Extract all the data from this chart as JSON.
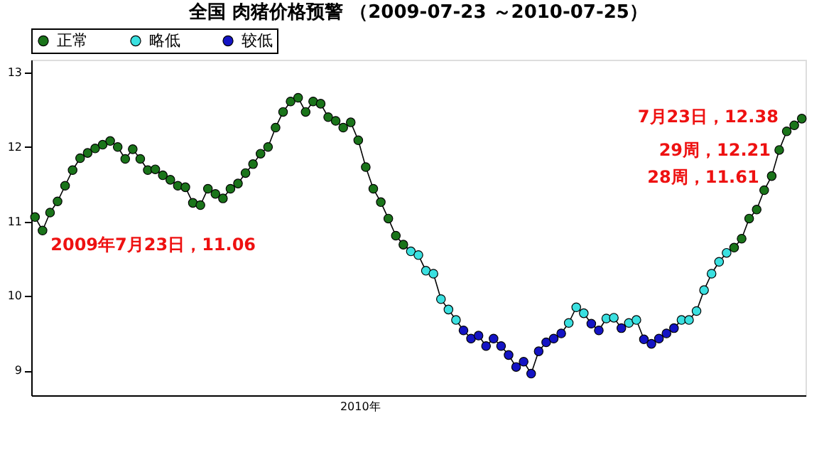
{
  "chart_data": {
    "type": "scatter",
    "title": "全国 肉猪价格预警 （2009-07-23 ～2010-07-25）",
    "categories": [
      null,
      null,
      null,
      null,
      null,
      null,
      null,
      null,
      null,
      null,
      null,
      null,
      null,
      null,
      null,
      null,
      null,
      null,
      null,
      null,
      null,
      null,
      null,
      null,
      null,
      null,
      null,
      null,
      null,
      null,
      null,
      null,
      null,
      null,
      null,
      null,
      null,
      null,
      null,
      null,
      null,
      null,
      null,
      null,
      null,
      null,
      null,
      null,
      null,
      null,
      null,
      null,
      null,
      null,
      null,
      null,
      null,
      null,
      null,
      null,
      null,
      null,
      null,
      null,
      null,
      null,
      null,
      null,
      null,
      null,
      null,
      null,
      null,
      null,
      null,
      null,
      null,
      null,
      null,
      null,
      null,
      null,
      null,
      null,
      null,
      null,
      null,
      null,
      null,
      null,
      null,
      null,
      null,
      null,
      null,
      null,
      null,
      null,
      null,
      null,
      null,
      null,
      null
    ],
    "ylim": [
      8.67,
      13.17
    ],
    "yticks": [
      9,
      10,
      11,
      12,
      13
    ],
    "grid": false,
    "legend": "top left",
    "marker": "circle",
    "series": [
      {
        "type": "line",
        "color": "#000000",
        "marker": "none",
        "values": [
          11.06,
          10.88,
          11.12,
          11.27,
          11.48,
          11.69,
          11.85,
          11.92,
          11.98,
          12.03,
          12.08,
          12.0,
          11.84,
          11.97,
          11.84,
          11.69,
          11.7,
          11.62,
          11.56,
          11.48,
          11.46,
          11.25,
          11.22,
          11.44,
          11.37,
          11.31,
          11.44,
          11.51,
          11.65,
          11.77,
          11.91,
          12.0,
          12.26,
          12.47,
          12.61,
          12.66,
          12.47,
          12.61,
          12.58,
          12.4,
          12.35,
          12.26,
          12.33,
          12.09,
          11.73,
          11.44,
          11.26,
          11.04,
          10.81,
          10.69,
          10.6,
          10.55,
          10.34,
          10.3,
          9.96,
          9.82,
          9.68,
          9.54,
          9.43,
          9.47,
          9.33,
          9.43,
          9.33,
          9.21,
          9.05,
          9.12,
          8.96,
          9.26,
          9.38,
          9.43,
          9.5,
          9.64,
          9.85,
          9.77,
          9.63,
          9.54,
          9.7,
          9.71,
          9.57,
          9.64,
          9.68,
          9.42,
          9.36,
          9.43,
          9.5,
          9.57,
          9.68,
          9.68,
          9.8,
          10.08,
          10.3,
          10.46,
          10.58,
          10.65,
          10.77,
          11.04,
          11.16,
          11.42,
          11.61,
          11.96,
          12.21,
          12.29,
          12.38
        ]
      },
      {
        "name": "正常",
        "color": "#1a741a",
        "values": [
          11.06,
          10.88,
          11.12,
          11.27,
          11.48,
          11.69,
          11.85,
          11.92,
          11.98,
          12.03,
          12.08,
          12.0,
          11.84,
          11.97,
          11.84,
          11.69,
          11.7,
          11.62,
          11.56,
          11.48,
          11.46,
          11.25,
          11.22,
          11.44,
          11.37,
          11.31,
          11.44,
          11.51,
          11.65,
          11.77,
          11.91,
          12.0,
          12.26,
          12.47,
          12.61,
          12.66,
          12.47,
          12.61,
          12.58,
          12.4,
          12.35,
          12.26,
          12.33,
          12.09,
          11.73,
          11.44,
          11.26,
          11.04,
          10.81,
          10.69,
          null,
          null,
          null,
          null,
          null,
          null,
          null,
          null,
          null,
          null,
          null,
          null,
          null,
          null,
          null,
          null,
          null,
          null,
          null,
          null,
          null,
          null,
          null,
          null,
          null,
          null,
          null,
          null,
          null,
          null,
          null,
          null,
          null,
          null,
          null,
          null,
          null,
          null,
          null,
          null,
          null,
          null,
          null,
          10.65,
          10.77,
          11.04,
          11.16,
          11.42,
          11.61,
          11.96,
          12.21,
          12.29,
          12.38
        ]
      },
      {
        "name": "略低",
        "color": "#3ae0e0",
        "values": [
          null,
          null,
          null,
          null,
          null,
          null,
          null,
          null,
          null,
          null,
          null,
          null,
          null,
          null,
          null,
          null,
          null,
          null,
          null,
          null,
          null,
          null,
          null,
          null,
          null,
          null,
          null,
          null,
          null,
          null,
          null,
          null,
          null,
          null,
          null,
          null,
          null,
          null,
          null,
          null,
          null,
          null,
          null,
          null,
          null,
          null,
          null,
          null,
          null,
          null,
          10.6,
          10.55,
          10.34,
          10.3,
          9.96,
          9.82,
          9.68,
          null,
          null,
          null,
          null,
          null,
          null,
          null,
          null,
          null,
          null,
          null,
          null,
          null,
          null,
          9.64,
          9.85,
          9.77,
          null,
          null,
          9.7,
          9.71,
          null,
          9.64,
          9.68,
          null,
          null,
          null,
          null,
          null,
          9.68,
          9.68,
          9.8,
          10.08,
          10.3,
          10.46,
          10.58,
          null,
          null,
          null,
          null,
          null,
          null,
          null,
          null,
          null,
          null
        ]
      },
      {
        "name": "较低",
        "color": "#1414c4",
        "values": [
          null,
          null,
          null,
          null,
          null,
          null,
          null,
          null,
          null,
          null,
          null,
          null,
          null,
          null,
          null,
          null,
          null,
          null,
          null,
          null,
          null,
          null,
          null,
          null,
          null,
          null,
          null,
          null,
          null,
          null,
          null,
          null,
          null,
          null,
          null,
          null,
          null,
          null,
          null,
          null,
          null,
          null,
          null,
          null,
          null,
          null,
          null,
          null,
          null,
          null,
          null,
          null,
          null,
          null,
          null,
          null,
          null,
          9.54,
          9.43,
          9.47,
          9.33,
          9.43,
          9.33,
          9.21,
          9.05,
          9.12,
          8.96,
          9.26,
          9.38,
          9.43,
          9.5,
          null,
          null,
          null,
          9.63,
          9.54,
          null,
          null,
          9.57,
          null,
          null,
          9.42,
          9.36,
          9.43,
          9.5,
          9.57,
          null,
          null,
          null,
          null,
          null,
          null,
          null,
          null,
          null,
          null,
          null,
          null,
          null,
          null,
          null,
          null,
          null
        ]
      }
    ],
    "annotations": [
      "2009年7月23日，11.06",
      "7月23日，12.38",
      "29周，12.21",
      "28周，11.61",
      "2010年"
    ]
  }
}
